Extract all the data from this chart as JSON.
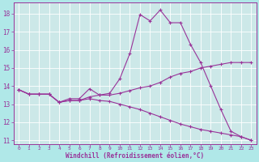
{
  "xlabel": "Windchill (Refroidissement éolien,°C)",
  "bg_color": "#b0e8e8",
  "plot_bg": "#cce8e8",
  "line_color": "#993399",
  "grid_color": "#ffffff",
  "border_color": "#993399",
  "bottom_bar_color": "#6633aa",
  "xlim": [
    -0.5,
    23.5
  ],
  "ylim": [
    10.8,
    18.6
  ],
  "yticks": [
    11,
    12,
    13,
    14,
    15,
    16,
    17,
    18
  ],
  "xticks": [
    0,
    1,
    2,
    3,
    4,
    5,
    6,
    7,
    8,
    9,
    10,
    11,
    12,
    13,
    14,
    15,
    16,
    17,
    18,
    19,
    20,
    21,
    22,
    23
  ],
  "line1_y": [
    13.8,
    13.55,
    13.55,
    13.55,
    13.1,
    13.3,
    13.3,
    13.85,
    13.5,
    13.6,
    14.4,
    15.8,
    17.95,
    17.6,
    18.2,
    17.5,
    17.5,
    16.3,
    15.3,
    14.0,
    12.7,
    11.5,
    11.2,
    11.0
  ],
  "line2_y": [
    13.8,
    13.55,
    13.55,
    13.55,
    13.1,
    13.2,
    13.2,
    13.4,
    13.5,
    13.5,
    13.6,
    13.75,
    13.9,
    14.0,
    14.2,
    14.5,
    14.7,
    14.8,
    15.0,
    15.1,
    15.2,
    15.3,
    15.3,
    15.3
  ],
  "line3_y": [
    13.8,
    13.55,
    13.55,
    13.55,
    13.1,
    13.2,
    13.2,
    13.3,
    13.2,
    13.15,
    13.0,
    12.85,
    12.7,
    12.5,
    12.3,
    12.1,
    11.9,
    11.75,
    11.6,
    11.5,
    11.4,
    11.3,
    11.2,
    11.0
  ]
}
